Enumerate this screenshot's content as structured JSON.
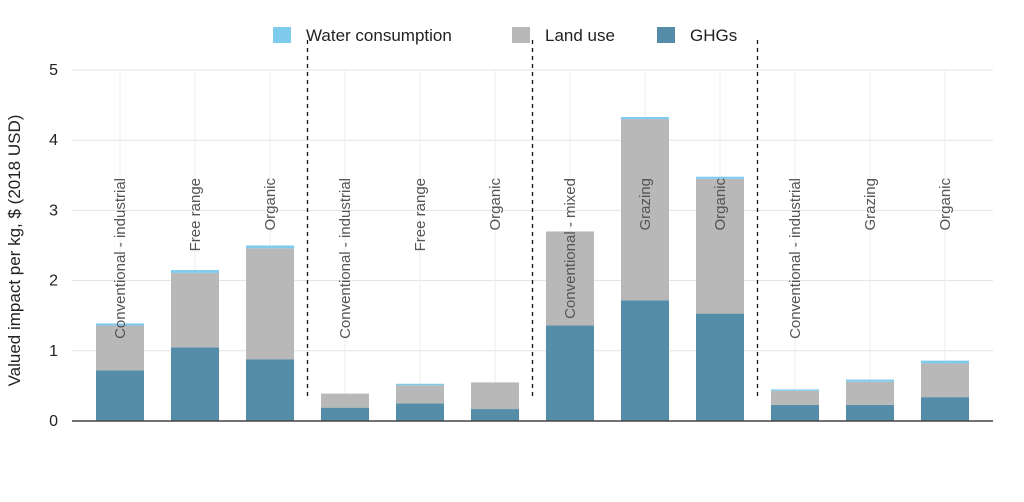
{
  "chart_data": {
    "type": "bar",
    "stacked": true,
    "ylabel": "Valued impact per kg, $ (2018 USD)",
    "ylim": [
      0,
      5
    ],
    "yticks": [
      0,
      1,
      2,
      3,
      4,
      5
    ],
    "grid": true,
    "legend_position": "top",
    "categories": [
      "Conventional - industrial",
      "Free range",
      "Organic",
      "Conventional - industrial",
      "Free range",
      "Organic",
      "Conventional - mixed",
      "Grazing",
      "Organic",
      "Conventional - industrial",
      "Grazing",
      "Organic"
    ],
    "group_separators_after": [
      3,
      6,
      9
    ],
    "series": [
      {
        "name": "GHGs",
        "color": "#558da9",
        "values": [
          0.72,
          1.05,
          0.88,
          0.19,
          0.25,
          0.17,
          1.36,
          1.72,
          1.53,
          0.23,
          0.23,
          0.34
        ]
      },
      {
        "name": "Land use",
        "color": "#b8b8b8",
        "values": [
          0.64,
          1.06,
          1.58,
          0.2,
          0.26,
          0.38,
          1.34,
          2.58,
          1.92,
          0.2,
          0.33,
          0.48
        ]
      },
      {
        "name": "Water consumption",
        "color": "#7ecbee",
        "values": [
          0.03,
          0.04,
          0.04,
          0.0,
          0.02,
          0.0,
          0.0,
          0.03,
          0.03,
          0.02,
          0.03,
          0.04
        ]
      }
    ],
    "legend_order": [
      "Water consumption",
      "Land use",
      "GHGs"
    ]
  }
}
